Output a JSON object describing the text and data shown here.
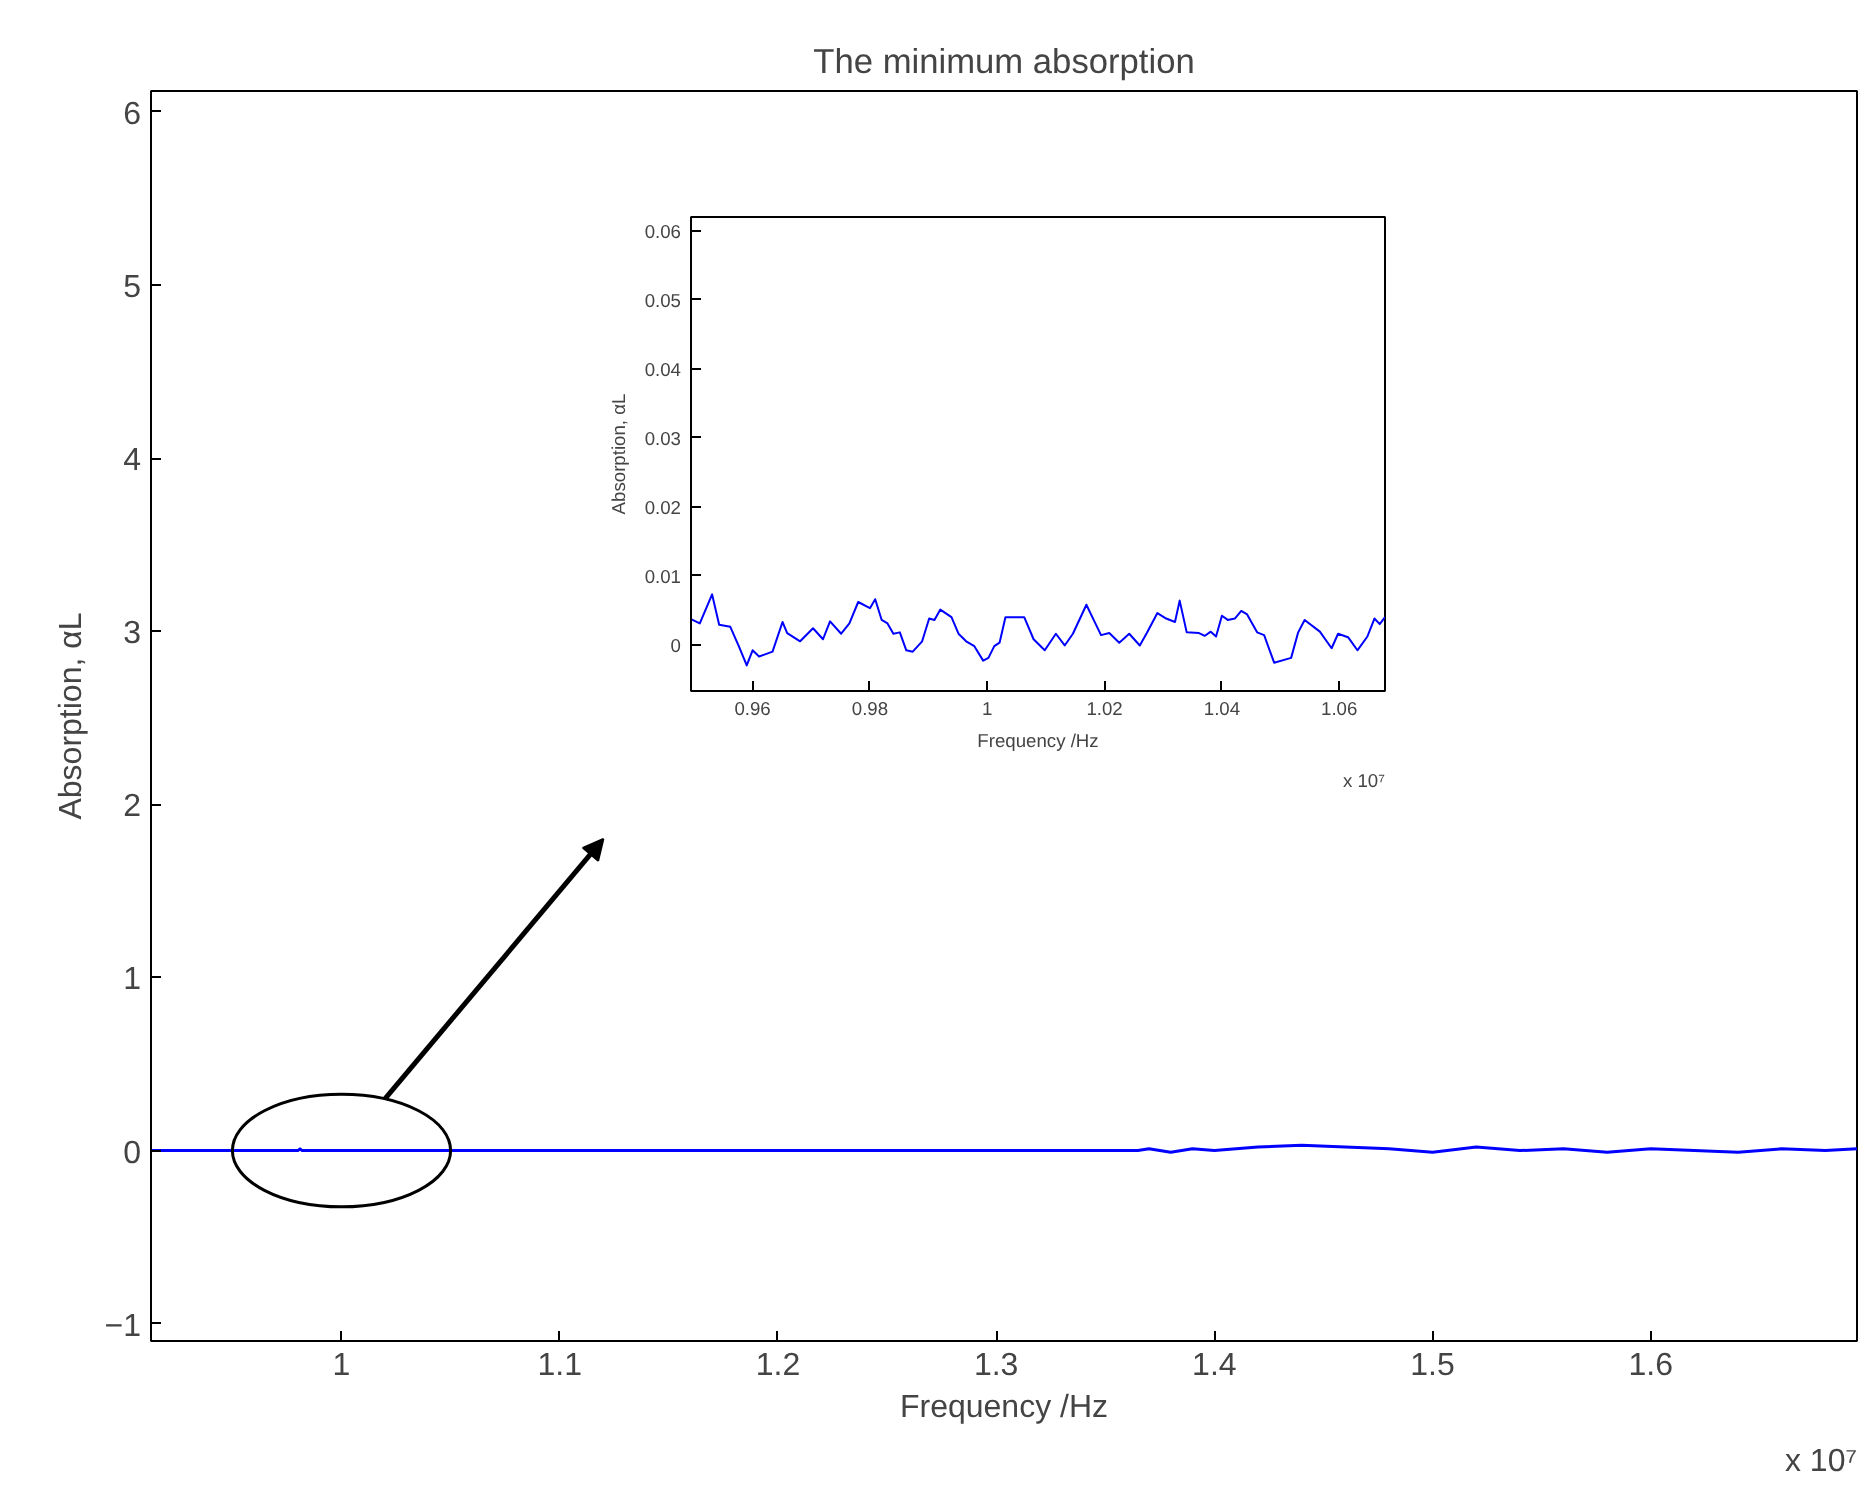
{
  "chart_data": [
    {
      "type": "line",
      "title": "The minimum absorption",
      "xlabel": "Frequency /Hz",
      "ylabel": "Absorption, αL",
      "annotations": [
        "x 10⁷"
      ],
      "xlim": [
        0.9127,
        1.6945
      ],
      "ylim": [
        -1.1,
        6.12
      ],
      "xticks": [
        {
          "value": 1,
          "label": "1"
        },
        1.1,
        1.2,
        1.3,
        1.4,
        1.5,
        1.6
      ],
      "yticks": [
        -1,
        0,
        1,
        2,
        3,
        4,
        5,
        6
      ],
      "grid": false,
      "series": [
        {
          "color": "#0000ff",
          "x": [
            0.9127,
            0.98,
            0.981,
            0.982,
            1.365,
            1.37,
            1.38,
            1.39,
            1.4,
            1.42,
            1.44,
            1.46,
            1.48,
            1.5,
            1.52,
            1.54,
            1.56,
            1.58,
            1.6,
            1.62,
            1.64,
            1.66,
            1.68,
            1.6945
          ],
          "values": [
            0,
            0,
            0.01,
            0,
            0,
            0.01,
            -0.01,
            0.01,
            0,
            0.02,
            0.03,
            0.02,
            0.01,
            -0.01,
            0.02,
            0,
            0.01,
            -0.01,
            0.01,
            0,
            -0.01,
            0.01,
            0,
            0.01
          ]
        }
      ]
    },
    {
      "type": "line",
      "xlabel": "Frequency /Hz",
      "ylabel": "Absorption, αL",
      "annotations": [
        "x 10⁷"
      ],
      "xlim": [
        0.9495,
        1.0678
      ],
      "ylim": [
        -0.0067,
        0.062
      ],
      "xticks": [
        0.96,
        0.98,
        {
          "value": 1,
          "label": "1"
        },
        1.02,
        1.04,
        1.06
      ],
      "yticks": [
        {
          "value": 0,
          "label": "0"
        },
        0.01,
        0.02,
        0.03,
        0.04,
        0.05,
        0.06
      ],
      "grid": false,
      "series": [
        {
          "color": "#0000ff",
          "x": [
            0.9495,
            0.951,
            0.9531,
            0.9543,
            0.9562,
            0.9577,
            0.959,
            0.96,
            0.9611,
            0.9634,
            0.9651,
            0.9659,
            0.9681,
            0.9703,
            0.972,
            0.9732,
            0.9751,
            0.9765,
            0.978,
            0.98,
            0.9809,
            0.982,
            0.983,
            0.984,
            0.9851,
            0.9862,
            0.9873,
            0.9889,
            0.9901,
            0.991,
            0.992,
            0.9939,
            0.9951,
            0.9964,
            0.9978,
            0.9993,
            1.0002,
            1.0012,
            1.0021,
            1.0031,
            1.0042,
            1.0063,
            1.0079,
            1.0098,
            1.0117,
            1.0132,
            1.0146,
            1.0169,
            1.0182,
            1.0194,
            1.0208,
            1.0225,
            1.0242,
            1.026,
            1.0272,
            1.029,
            1.0305,
            1.032,
            1.0328,
            1.034,
            1.0361,
            1.0371,
            1.0381,
            1.039,
            1.04,
            1.041,
            1.0422,
            1.0433,
            1.0443,
            1.046,
            1.0472,
            1.0489,
            1.0518,
            1.053,
            1.0541,
            1.0567,
            1.0587,
            1.0598,
            1.0615,
            1.0631,
            1.0648,
            1.066,
            1.0669,
            1.0678
          ],
          "values": [
            0.0037,
            0.0031,
            0.0073,
            0.0029,
            0.0026,
            -0.0003,
            -0.003,
            -0.0008,
            -0.0017,
            -0.001,
            0.0033,
            0.0017,
            0.0005,
            0.0024,
            0.0008,
            0.0034,
            0.0016,
            0.0031,
            0.0062,
            0.0053,
            0.0066,
            0.0036,
            0.0031,
            0.0016,
            0.0018,
            -0.0008,
            -0.001,
            0.0005,
            0.0038,
            0.0036,
            0.0051,
            0.004,
            0.0016,
            0.0005,
            -0.0002,
            -0.0023,
            -0.0019,
            -0.0002,
            0.0003,
            0.004,
            0.004,
            0.004,
            0.0008,
            -0.0008,
            0.0016,
            -0.0001,
            0.0016,
            0.0058,
            0.0035,
            0.0014,
            0.0017,
            0.0003,
            0.0016,
            -0.0001,
            0.0017,
            0.0046,
            0.0038,
            0.0033,
            0.0064,
            0.0018,
            0.0017,
            0.0013,
            0.0019,
            0.0012,
            0.0042,
            0.0036,
            0.0038,
            0.0049,
            0.0044,
            0.0018,
            0.0014,
            -0.0026,
            -0.0019,
            0.0018,
            0.0036,
            0.0019,
            -0.0005,
            0.0016,
            0.0011,
            -0.0008,
            0.0012,
            0.0038,
            0.003,
            0.004
          ]
        }
      ]
    }
  ]
}
